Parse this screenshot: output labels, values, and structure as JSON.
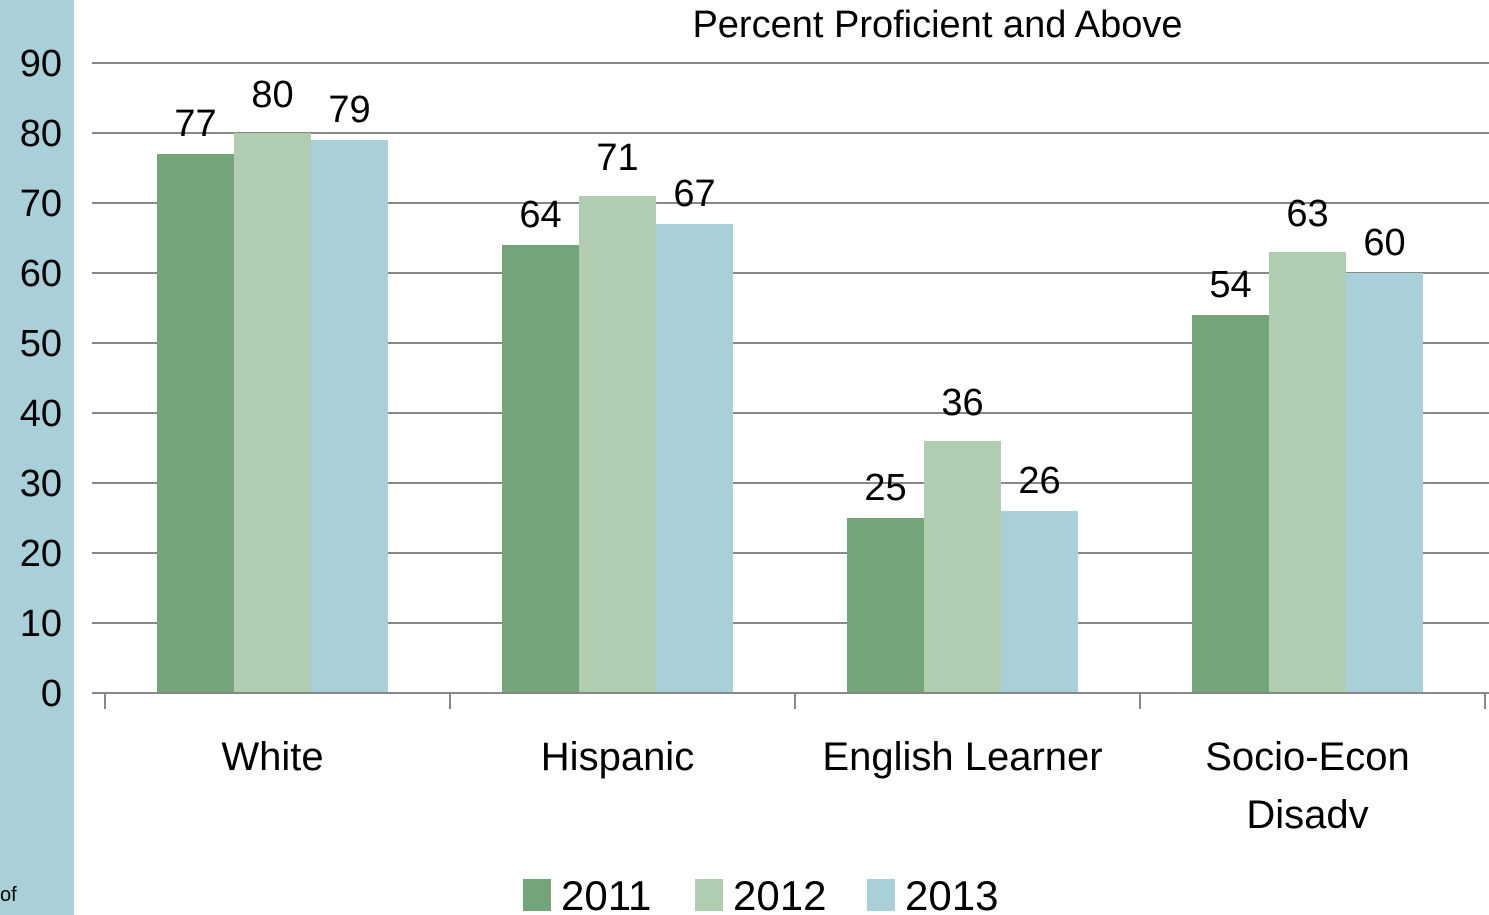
{
  "stray_text": "of",
  "chart_data": {
    "type": "bar",
    "title": "Percent Proficient and Above",
    "xlabel": "",
    "ylabel": "",
    "ylim": [
      0,
      90
    ],
    "yticks": [
      0,
      10,
      20,
      30,
      40,
      50,
      60,
      70,
      80,
      90
    ],
    "categories": [
      "White",
      "Hispanic",
      "English Learner",
      "Socio-Econ Disadv"
    ],
    "series": [
      {
        "name": "2011",
        "values": [
          77,
          64,
          25,
          54
        ],
        "color": "#74a57a"
      },
      {
        "name": "2012",
        "values": [
          80,
          71,
          36,
          63
        ],
        "color": "#b0cdb1"
      },
      {
        "name": "2013",
        "values": [
          79,
          67,
          26,
          60
        ],
        "color": "#a9cfd9"
      }
    ],
    "grid": true,
    "legend": "bottom",
    "data_labels": true
  },
  "colors": {
    "left_strip": "#a9cfd9",
    "gridline": "#888888"
  }
}
